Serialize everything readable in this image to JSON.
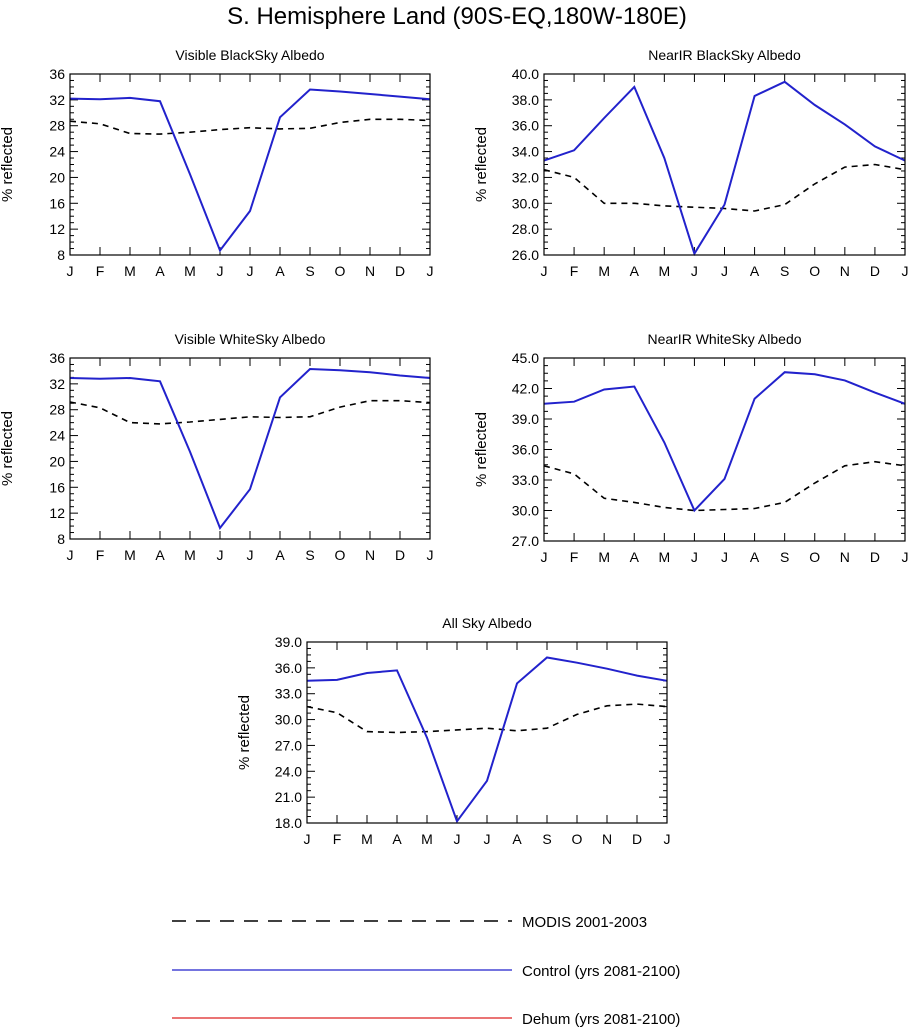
{
  "figure": {
    "title": "S. Hemisphere Land (90S-EQ,180W-180E)"
  },
  "colors": {
    "modis": "#000000",
    "control": "#2222cc",
    "dehum": "#dd2222",
    "axis": "#000000"
  },
  "legend": {
    "items": [
      {
        "key": "modis",
        "label": "MODIS 2001-2003",
        "style": "dashed"
      },
      {
        "key": "control",
        "label": "Control (yrs 2081-2100)",
        "style": "solid"
      },
      {
        "key": "dehum",
        "label": "Dehum (yrs 2081-2100)",
        "style": "solid"
      }
    ]
  },
  "chart_data": [
    {
      "type": "line",
      "title": "Visible BlackSky Albedo",
      "xlabel": "",
      "ylabel": "% reflected",
      "categories": [
        "J",
        "F",
        "M",
        "A",
        "M",
        "J",
        "J",
        "A",
        "S",
        "O",
        "N",
        "D",
        "J"
      ],
      "ylim": [
        8,
        36
      ],
      "yticks": [
        "8",
        "12",
        "16",
        "20",
        "24",
        "28",
        "32",
        "36"
      ],
      "series": [
        {
          "name": "MODIS 2001-2003",
          "values": [
            28.7,
            28.3,
            26.8,
            26.7,
            27.0,
            27.4,
            27.7,
            27.5,
            27.6,
            28.5,
            29.0,
            29.0,
            28.8
          ]
        },
        {
          "name": "Control (yrs 2081-2100)",
          "values": [
            32.2,
            32.1,
            32.3,
            31.8,
            20.5,
            8.7,
            14.8,
            29.3,
            33.6,
            33.3,
            32.9,
            32.5,
            32.1
          ]
        }
      ]
    },
    {
      "type": "line",
      "title": "NearIR BlackSky Albedo",
      "xlabel": "",
      "ylabel": "% reflected",
      "categories": [
        "J",
        "F",
        "M",
        "A",
        "M",
        "J",
        "J",
        "A",
        "S",
        "O",
        "N",
        "D",
        "J"
      ],
      "ylim": [
        26,
        40
      ],
      "yticks": [
        "26.0",
        "28.0",
        "30.0",
        "32.0",
        "34.0",
        "36.0",
        "38.0",
        "40.0"
      ],
      "series": [
        {
          "name": "MODIS 2001-2003",
          "values": [
            32.6,
            32.0,
            30.0,
            30.0,
            29.8,
            29.7,
            29.6,
            29.4,
            29.9,
            31.5,
            32.8,
            33.0,
            32.6
          ]
        },
        {
          "name": "Control (yrs 2081-2100)",
          "values": [
            33.3,
            34.1,
            36.6,
            39.0,
            33.5,
            26.1,
            29.9,
            38.3,
            39.4,
            37.6,
            36.1,
            34.4,
            33.3
          ]
        }
      ]
    },
    {
      "type": "line",
      "title": "Visible WhiteSky Albedo",
      "xlabel": "",
      "ylabel": "% reflected",
      "categories": [
        "J",
        "F",
        "M",
        "A",
        "M",
        "J",
        "J",
        "A",
        "S",
        "O",
        "N",
        "D",
        "J"
      ],
      "ylim": [
        8,
        36
      ],
      "yticks": [
        "8",
        "12",
        "16",
        "20",
        "24",
        "28",
        "32",
        "36"
      ],
      "series": [
        {
          "name": "MODIS 2001-2003",
          "values": [
            29.2,
            28.3,
            26.0,
            25.8,
            26.1,
            26.5,
            26.9,
            26.8,
            26.9,
            28.4,
            29.4,
            29.4,
            29.1
          ]
        },
        {
          "name": "Control (yrs 2081-2100)",
          "values": [
            32.9,
            32.8,
            32.9,
            32.4,
            21.5,
            9.7,
            15.7,
            29.9,
            34.3,
            34.1,
            33.8,
            33.3,
            32.9
          ]
        }
      ]
    },
    {
      "type": "line",
      "title": "NearIR WhiteSky Albedo",
      "xlabel": "",
      "ylabel": "% reflected",
      "categories": [
        "J",
        "F",
        "M",
        "A",
        "M",
        "J",
        "J",
        "A",
        "S",
        "O",
        "N",
        "D",
        "J"
      ],
      "ylim": [
        27,
        45
      ],
      "yticks": [
        "27.0",
        "30.0",
        "33.0",
        "36.0",
        "39.0",
        "42.0",
        "45.0"
      ],
      "series": [
        {
          "name": "MODIS 2001-2003",
          "values": [
            34.4,
            33.6,
            31.2,
            30.8,
            30.3,
            30.0,
            30.1,
            30.2,
            30.8,
            32.7,
            34.4,
            34.8,
            34.4
          ]
        },
        {
          "name": "Control (yrs 2081-2100)",
          "values": [
            40.5,
            40.7,
            41.9,
            42.2,
            36.7,
            30.0,
            33.1,
            41.0,
            43.6,
            43.4,
            42.8,
            41.6,
            40.5
          ]
        }
      ]
    },
    {
      "type": "line",
      "title": "All Sky Albedo",
      "xlabel": "",
      "ylabel": "% reflected",
      "categories": [
        "J",
        "F",
        "M",
        "A",
        "M",
        "J",
        "J",
        "A",
        "S",
        "O",
        "N",
        "D",
        "J"
      ],
      "ylim": [
        18,
        39
      ],
      "yticks": [
        "18.0",
        "21.0",
        "24.0",
        "27.0",
        "30.0",
        "33.0",
        "36.0",
        "39.0"
      ],
      "series": [
        {
          "name": "MODIS 2001-2003",
          "values": [
            31.5,
            30.8,
            28.6,
            28.5,
            28.6,
            28.8,
            29.0,
            28.7,
            29.0,
            30.6,
            31.6,
            31.8,
            31.5
          ]
        },
        {
          "name": "Control (yrs 2081-2100)",
          "values": [
            34.5,
            34.6,
            35.4,
            35.7,
            27.9,
            18.2,
            22.9,
            34.2,
            37.2,
            36.6,
            35.9,
            35.1,
            34.5
          ]
        }
      ]
    }
  ]
}
